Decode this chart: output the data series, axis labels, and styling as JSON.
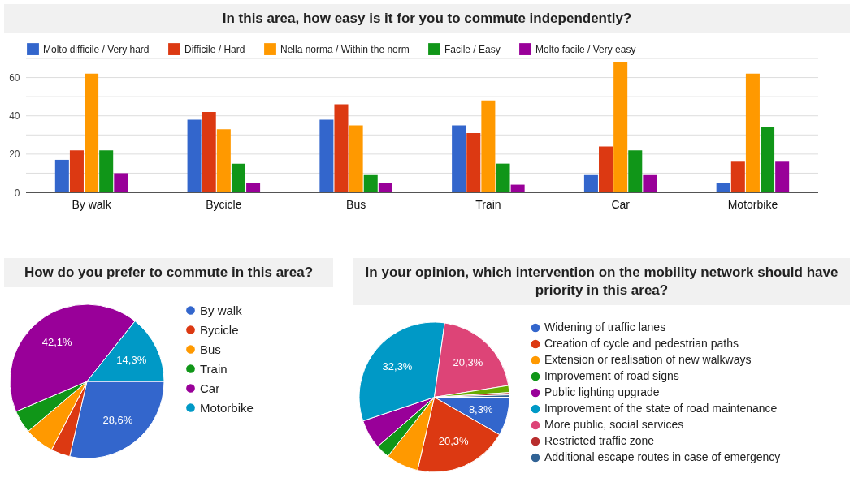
{
  "chart_data": [
    {
      "type": "bar",
      "title": "In this area, how easy is it for you to commute independently?",
      "categories": [
        "By walk",
        "Bycicle",
        "Bus",
        "Train",
        "Car",
        "Motorbike"
      ],
      "series": [
        {
          "name": "Molto difficile / Very hard",
          "color": "#3366cc",
          "values": [
            17,
            38,
            38,
            35,
            9,
            5
          ]
        },
        {
          "name": "Difficile / Hard",
          "color": "#dc3912",
          "values": [
            22,
            42,
            46,
            31,
            24,
            16
          ]
        },
        {
          "name": "Nella norma / Within the norm",
          "color": "#ff9900",
          "values": [
            62,
            33,
            35,
            48,
            68,
            62
          ]
        },
        {
          "name": "Facile / Easy",
          "color": "#109618",
          "values": [
            22,
            15,
            9,
            15,
            22,
            34
          ]
        },
        {
          "name": "Molto facile / Very easy",
          "color": "#990099",
          "values": [
            10,
            5,
            5,
            4,
            9,
            16
          ]
        }
      ],
      "ylim": [
        0,
        70
      ],
      "yticks": [
        0,
        {
          "value": 10,
          "label": null
        },
        20,
        {
          "value": 30,
          "label": null
        },
        40,
        {
          "value": 50,
          "label": null
        },
        60,
        {
          "value": 70,
          "label": null
        }
      ],
      "grid": true,
      "legend": "top left"
    },
    {
      "type": "pie",
      "title": "How do you prefer to commute in this area?",
      "categories": [
        "By walk",
        "Bycicle",
        "Bus",
        "Train",
        "Car",
        "Motorbike"
      ],
      "values": [
        28.6,
        4.0,
        6.2,
        4.8,
        42.1,
        14.3
      ],
      "colors": [
        "#3366cc",
        "#dc3912",
        "#ff9900",
        "#109618",
        "#990099",
        "#0099c6"
      ],
      "value_labels": [
        "28,6%",
        null,
        null,
        null,
        "42,1%",
        "14,3%"
      ],
      "legend": "right"
    },
    {
      "type": "pie",
      "title": "In your opinion, which intervention on the mobility network should have priority in this area?",
      "categories": [
        "Widening of traffic lanes",
        "Creation of cycle and pedestrian paths",
        "Extension or realisation of new walkways",
        "Improvement of road signs",
        "Public lighting upgrade",
        "Improvement of the state of road maintenance",
        "More public, social services",
        null,
        "Restricted traffic zone",
        "Additional escape routes in case of emergency"
      ],
      "values": [
        8.3,
        20.3,
        7.0,
        3.0,
        6.3,
        32.3,
        20.3,
        1.5,
        0.5,
        0.5
      ],
      "colors": [
        "#3366cc",
        "#dc3912",
        "#ff9900",
        "#109618",
        "#990099",
        "#0099c6",
        "#dd4477",
        "#66aa00",
        "#b82e2e",
        "#316395"
      ],
      "value_labels": [
        "8,3%",
        "20,3%",
        null,
        null,
        null,
        "32,3%",
        "20,3%",
        null,
        null,
        null
      ],
      "legend": "right"
    }
  ]
}
